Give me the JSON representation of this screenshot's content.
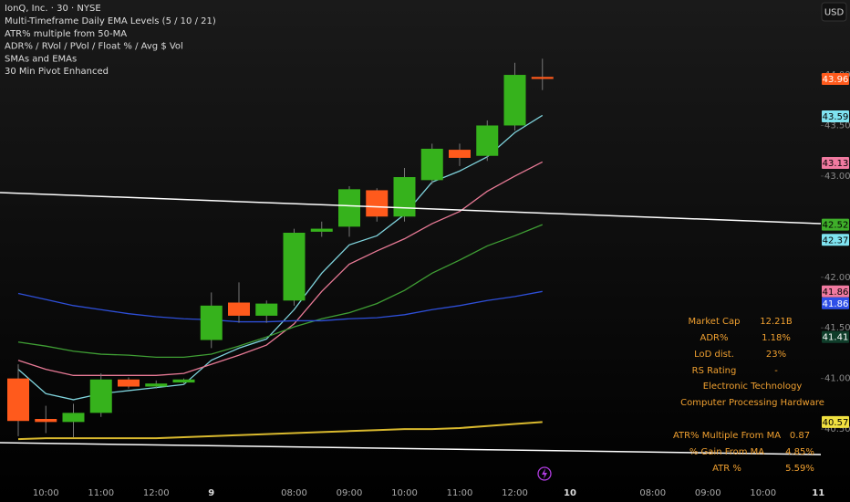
{
  "chart_data": {
    "type": "candlestick",
    "title": "IonQ, Inc. · 30 · NYSE",
    "indicators": [
      "Multi-Timeframe Daily EMA Levels (5 / 10 / 21)",
      "ATR% multiple from 50-MA",
      "ADR% / RVol / PVol / Float % / Avg $ Vol",
      "SMAs and EMAs",
      "30 Min Pivot Enhanced"
    ],
    "currency": "USD",
    "categories": [
      null,
      "10:00",
      null,
      "11:00",
      null,
      "12:00",
      null,
      "9",
      null,
      null,
      "08:00",
      null,
      "09:00",
      null,
      "10:00",
      null,
      "11:00",
      null,
      "12:00",
      null,
      "10",
      null,
      null,
      "08:00",
      null,
      "09:00",
      null,
      "10:00",
      null,
      "11"
    ],
    "open": [
      41.0,
      40.6,
      40.57,
      40.66,
      40.99,
      40.92,
      40.96,
      41.38,
      41.75,
      41.62,
      41.77,
      42.45,
      42.5,
      42.86,
      42.6,
      42.96,
      43.26,
      43.2,
      43.5,
      43.98,
      null,
      null,
      null,
      null,
      null,
      null,
      null,
      null,
      null,
      null
    ],
    "high": [
      41.14,
      40.73,
      40.75,
      41.05,
      41.01,
      40.98,
      41.0,
      41.85,
      41.95,
      41.77,
      42.48,
      42.55,
      42.9,
      42.88,
      43.08,
      43.32,
      43.32,
      43.55,
      44.12,
      44.16,
      null,
      null,
      null,
      null,
      null,
      null,
      null,
      null,
      null,
      null
    ],
    "low": [
      40.43,
      40.46,
      40.42,
      40.62,
      40.9,
      40.9,
      40.94,
      41.3,
      41.55,
      41.55,
      41.72,
      42.4,
      42.4,
      42.55,
      42.55,
      42.92,
      43.1,
      43.15,
      43.45,
      43.85,
      null,
      null,
      null,
      null,
      null,
      null,
      null,
      null,
      null,
      null
    ],
    "close": [
      40.58,
      40.57,
      40.66,
      40.99,
      40.92,
      40.95,
      40.99,
      41.72,
      41.62,
      41.74,
      42.44,
      42.48,
      42.87,
      42.6,
      42.99,
      43.27,
      43.18,
      43.5,
      44.0,
      43.96,
      null,
      null,
      null,
      null,
      null,
      null,
      null,
      null,
      null,
      null
    ],
    "up_color": "#36b21c",
    "down_color": "#ff5a1c",
    "series": [
      {
        "color": "#7fd3dc",
        "values": [
          41.09,
          40.85,
          40.79,
          40.85,
          40.88,
          40.91,
          40.94,
          41.18,
          41.3,
          41.39,
          41.68,
          42.04,
          42.32,
          42.41,
          42.62,
          42.94,
          43.05,
          43.19,
          43.43,
          43.6,
          null,
          null,
          null,
          null,
          null,
          null,
          null,
          null,
          null,
          null
        ]
      },
      {
        "color": "#e87a96",
        "values": [
          41.18,
          41.09,
          41.03,
          41.03,
          41.03,
          41.03,
          41.05,
          41.14,
          41.23,
          41.33,
          41.54,
          41.86,
          42.13,
          42.26,
          42.38,
          42.53,
          42.65,
          42.85,
          43.0,
          43.14,
          null,
          null,
          null,
          null,
          null,
          null,
          null,
          null,
          null,
          null
        ]
      },
      {
        "color": "#3f9e34",
        "values": [
          41.36,
          41.32,
          41.27,
          41.24,
          41.23,
          41.21,
          41.21,
          41.24,
          41.32,
          41.41,
          41.51,
          41.59,
          41.65,
          41.74,
          41.87,
          42.04,
          42.17,
          42.31,
          42.41,
          42.52,
          null,
          null,
          null,
          null,
          null,
          null,
          null,
          null,
          null,
          null
        ]
      },
      {
        "color": "#2e4fd8",
        "values": [
          41.84,
          41.78,
          41.72,
          41.68,
          41.64,
          41.61,
          41.59,
          41.58,
          41.56,
          41.56,
          41.57,
          41.57,
          41.59,
          41.6,
          41.63,
          41.68,
          41.72,
          41.77,
          41.81,
          41.86,
          null,
          null,
          null,
          null,
          null,
          null,
          null,
          null,
          null,
          null
        ]
      },
      {
        "color": "#d9b92e",
        "values": [
          40.4,
          40.41,
          40.41,
          40.41,
          40.41,
          40.41,
          40.42,
          40.43,
          40.44,
          40.45,
          40.46,
          40.47,
          40.48,
          40.49,
          40.5,
          40.5,
          40.51,
          40.53,
          40.55,
          40.57,
          null,
          null,
          null,
          null,
          null,
          null,
          null,
          null,
          null,
          null
        ]
      }
    ],
    "price_labels": [
      {
        "value": 43.96,
        "color": "#ff5a1c"
      },
      {
        "value": 43.59,
        "color": "#7fe3f0"
      },
      {
        "value": 43.13,
        "color": "#f07aa0"
      },
      {
        "value": 42.52,
        "color": "#3fae2a"
      },
      {
        "value": 42.37,
        "color": "#7fe3f0"
      },
      {
        "value": 41.86,
        "color": "#f07aa0"
      },
      {
        "value": 41.86,
        "color": "#2e4fe8"
      },
      {
        "value": 41.41,
        "color": "#0f3d2a"
      },
      {
        "value": 40.57,
        "color": "#f0e040"
      }
    ],
    "ylim": [
      40.14,
      44.74
    ],
    "yticks": [
      {
        "value": 40.5,
        "label": "40.50"
      },
      {
        "value": 41,
        "label": "41.00"
      },
      {
        "value": 41.5,
        "label": "41.50"
      },
      {
        "value": 42,
        "label": "42.00"
      },
      {
        "value": 43,
        "label": "43.00"
      },
      {
        "value": 43.5,
        "label": "43.50"
      },
      {
        "value": 44,
        "label": "44.00"
      }
    ]
  },
  "info_table": {
    "rows": [
      [
        "Market Cap",
        "12.21B"
      ],
      [
        "ADR%",
        "1.18%"
      ],
      [
        "LoD dist.",
        "23%"
      ],
      [
        "RS Rating",
        "-"
      ]
    ],
    "sector": "Electronic Technology",
    "industry": "Computer Processing Hardware",
    "atr_rows": [
      [
        "ATR% Multiple From MA",
        "0.87"
      ],
      [
        "% Gain From MA",
        "4.85%"
      ],
      [
        "ATR %",
        "5.59%"
      ]
    ]
  }
}
